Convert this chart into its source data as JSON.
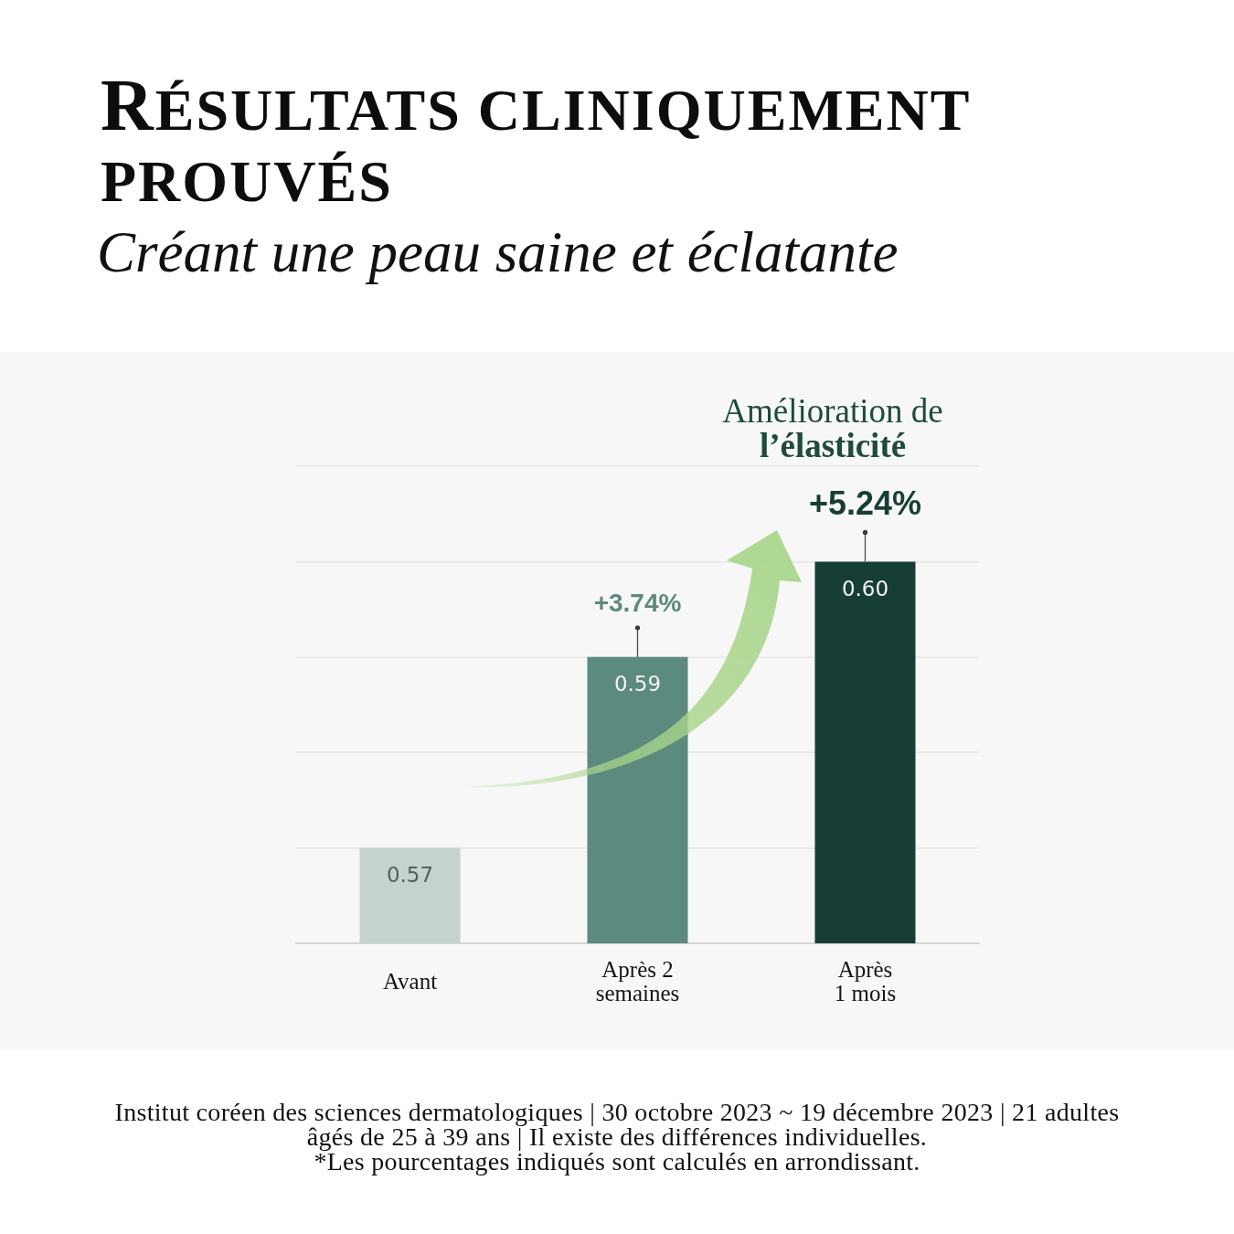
{
  "chart_data": {
    "type": "bar",
    "title": "RÉSULTATS CLINIQUEMENT PROUVÉS",
    "subtitle": "Créant une peau saine et éclatante",
    "categories": [
      "Avant",
      "Après 2\nsemaines",
      "Après\n1 mois"
    ],
    "values": [
      0.57,
      0.59,
      0.6
    ],
    "colors": [
      "#c6d2cf",
      "#5d8a7e",
      "#163e36"
    ],
    "value_labels": [
      "0.57",
      "0.59",
      "0.60"
    ],
    "ylim": [
      0.56,
      0.61
    ],
    "yticks": [
      {
        "value": 0.56,
        "label": null
      },
      {
        "value": 0.57,
        "label": null
      },
      {
        "value": 0.58,
        "label": null
      },
      {
        "value": 0.59,
        "label": null
      },
      {
        "value": 0.6,
        "label": null
      },
      {
        "value": 0.61,
        "label": null
      }
    ],
    "tick_labels": "x",
    "grid": "y",
    "annotations": [
      "Amélioration de l’élasticité",
      {
        "text": "+3.74%",
        "x": "Après 2\nsemaines",
        "y": 0.59
      },
      {
        "text": "+5.24%",
        "x": "Après\n1 mois",
        "y": 0.6
      },
      "Institut coréen des sciences dermatologiques | 30 octobre 2023 ~ 19 décembre 2023 | 21 adultes âgés de 25 à 39 ans | Il existe des différences individuelles.",
      "*Les pourcentages indiqués sont calculés en arrondissant."
    ]
  }
}
